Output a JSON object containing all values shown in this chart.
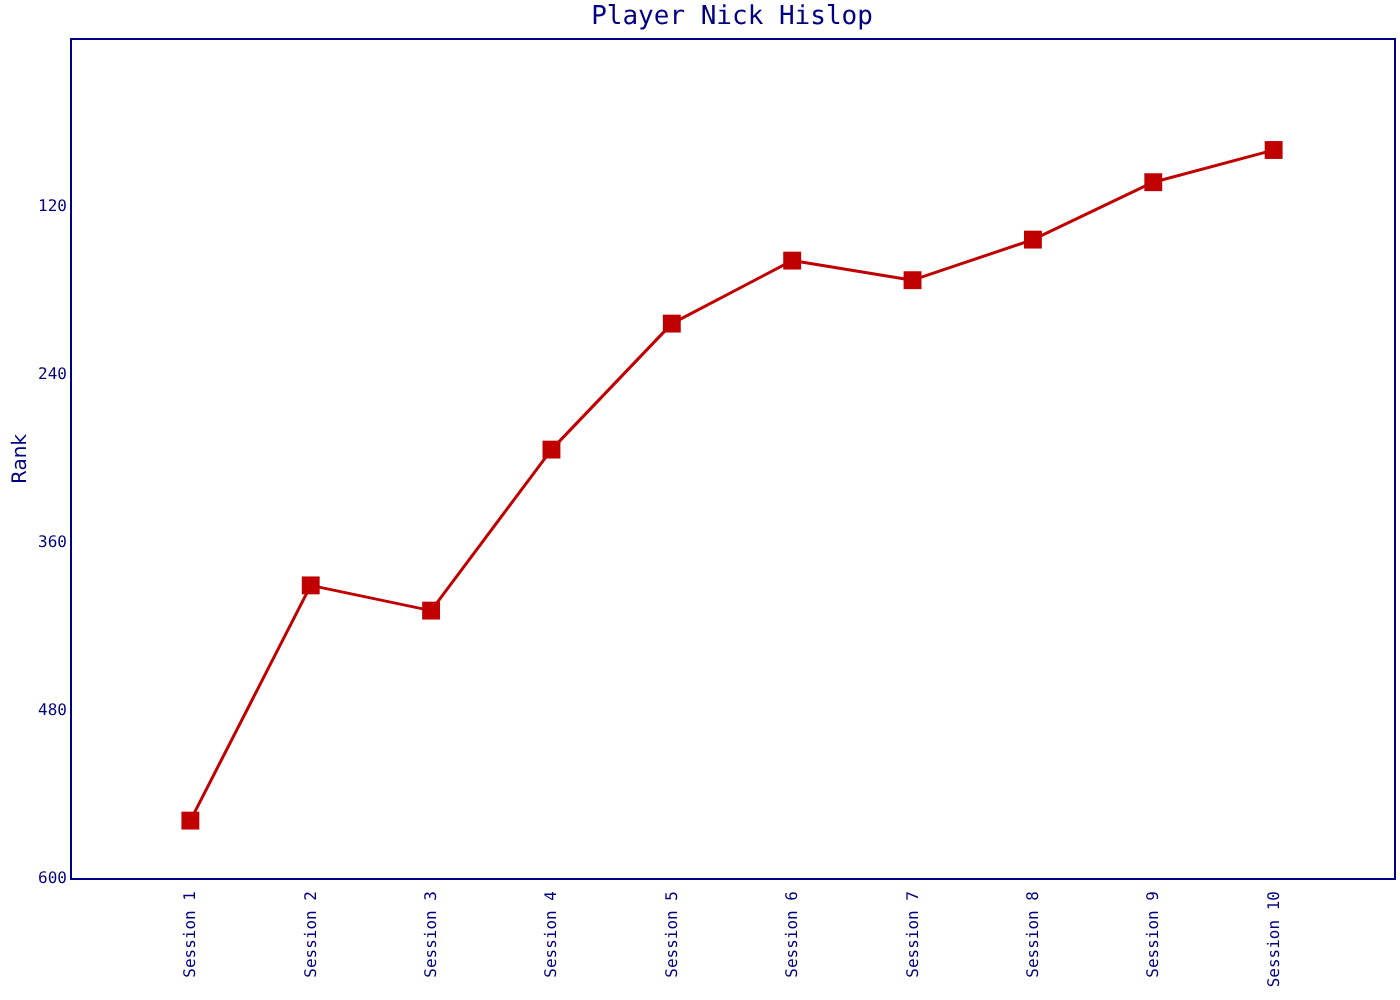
{
  "chart_data": {
    "type": "line",
    "title": "Player Nick Hislop",
    "ylabel": "Rank",
    "categories": [
      "Session 1",
      "Session 2",
      "Session 3",
      "Session 4",
      "Session 5",
      "Session 6",
      "Session 7",
      "Session 8",
      "Session 9",
      "Session 10"
    ],
    "series": [
      {
        "color": "#c00000",
        "values": [
          559,
          391,
          409,
          294,
          204,
          159,
          173,
          144,
          103,
          80
        ]
      }
    ],
    "ylim": [
      600,
      0
    ],
    "yticks": [
      120,
      240,
      360,
      480,
      600
    ],
    "marker": "square",
    "line_style": "solid",
    "grid": false,
    "legend": false
  }
}
